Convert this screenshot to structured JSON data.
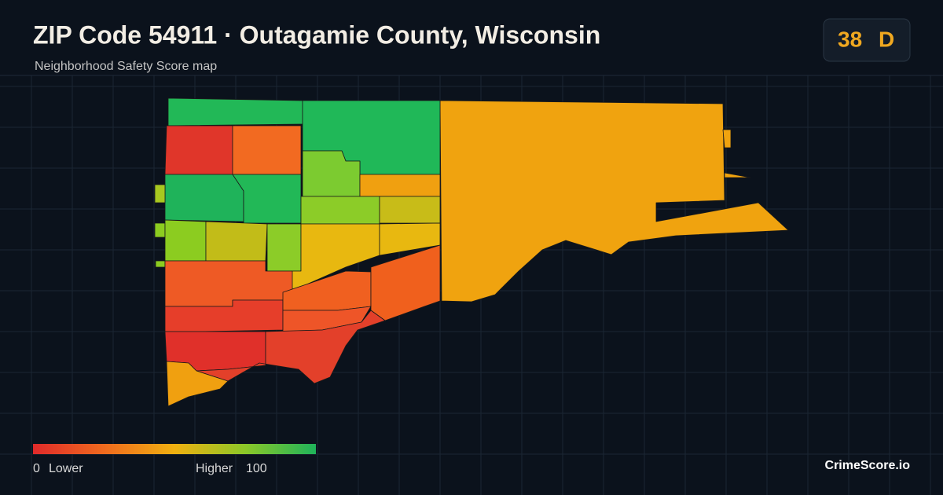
{
  "header": {
    "title": "ZIP Code 54911 · Outagamie County, Wisconsin",
    "subtitle": "Neighborhood Safety Score map"
  },
  "badge": {
    "score": "38",
    "grade": "D"
  },
  "legend": {
    "min": 0,
    "low_label": "Lower",
    "high_label": "Higher",
    "max": 100
  },
  "brand": "CrimeScore.io"
}
